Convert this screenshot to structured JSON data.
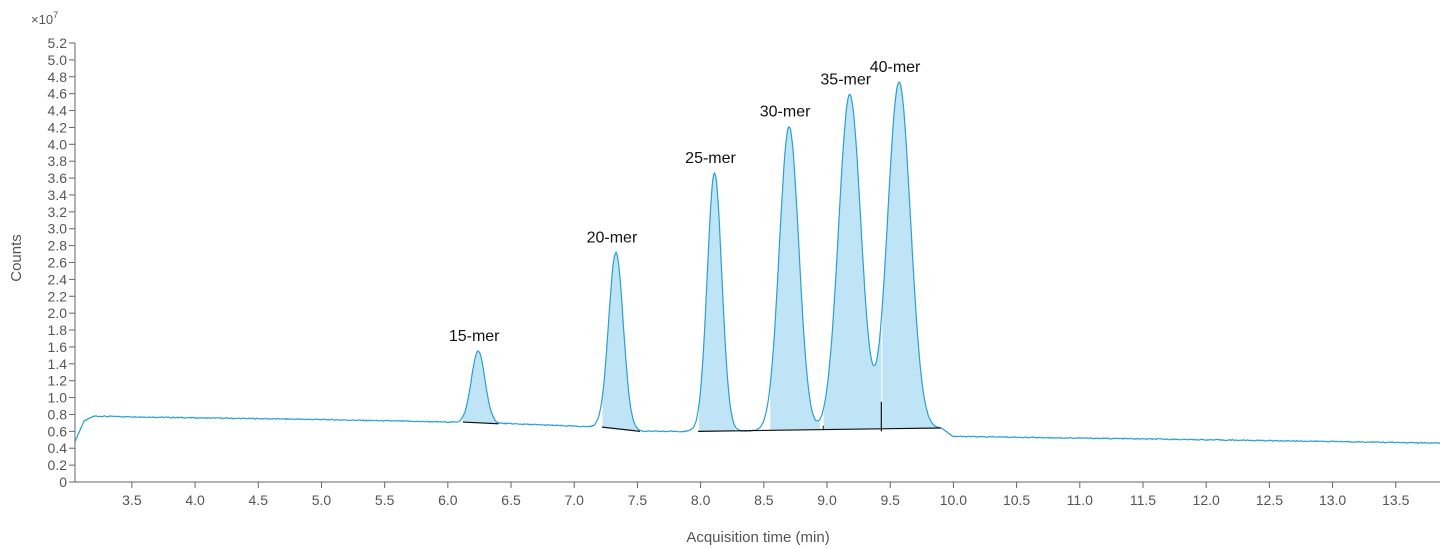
{
  "chart_data": {
    "type": "line",
    "xlabel": "Acquisition time (min)",
    "ylabel": "Counts",
    "y_multiplier": "×10",
    "y_multiplier_exponent": "7",
    "xlim": [
      3.05,
      13.85
    ],
    "ylim": [
      0,
      5.2
    ],
    "x_ticks": [
      "3.5",
      "4.0",
      "4.5",
      "5.0",
      "5.5",
      "6.0",
      "6.5",
      "7.0",
      "7.5",
      "8.0",
      "8.5",
      "9.0",
      "9.5",
      "10.0",
      "10.5",
      "11.0",
      "11.5",
      "12.0",
      "12.5",
      "13.0",
      "13.5"
    ],
    "y_ticks": [
      "0",
      "0.2",
      "0.4",
      "0.6",
      "0.8",
      "1.0",
      "1.2",
      "1.4",
      "1.6",
      "1.8",
      "2.0",
      "2.2",
      "2.4",
      "2.6",
      "2.8",
      "3.0",
      "3.2",
      "3.4",
      "3.6",
      "3.8",
      "4.0",
      "4.2",
      "4.4",
      "4.6",
      "4.8",
      "5.0",
      "5.2"
    ],
    "line_color": "#2a9fd0",
    "fill_color": "#bfe4f5",
    "peaks": [
      {
        "name": "15-mer",
        "apex_x": 6.24,
        "apex_y": 1.55,
        "start_x": 6.12,
        "end_x": 6.4
      },
      {
        "name": "20-mer",
        "apex_x": 7.33,
        "apex_y": 2.72,
        "start_x": 7.22,
        "end_x": 7.52
      },
      {
        "name": "25-mer",
        "apex_x": 8.11,
        "apex_y": 3.66,
        "start_x": 7.98,
        "end_x": 8.28
      },
      {
        "name": "30-mer",
        "apex_x": 8.7,
        "apex_y": 4.21,
        "start_x": 8.55,
        "end_x": 8.95
      },
      {
        "name": "35-mer",
        "apex_x": 9.18,
        "apex_y": 4.59,
        "start_x": 8.97,
        "end_x": 9.43
      },
      {
        "name": "40-mer",
        "apex_x": 9.57,
        "apex_y": 4.74,
        "start_x": 9.43,
        "end_x": 9.9
      }
    ],
    "peak_integration_boundary": [
      {
        "from_x": 9.43,
        "from_y": 0.6,
        "to_y": 0.95
      }
    ],
    "baseline_points": [
      {
        "x": 3.05,
        "y": 0.48
      },
      {
        "x": 3.12,
        "y": 0.72
      },
      {
        "x": 3.2,
        "y": 0.78
      },
      {
        "x": 4.0,
        "y": 0.76
      },
      {
        "x": 5.0,
        "y": 0.74
      },
      {
        "x": 6.0,
        "y": 0.71
      },
      {
        "x": 6.5,
        "y": 0.69
      },
      {
        "x": 7.2,
        "y": 0.65
      },
      {
        "x": 7.55,
        "y": 0.6
      },
      {
        "x": 8.0,
        "y": 0.6
      },
      {
        "x": 9.0,
        "y": 0.61
      },
      {
        "x": 9.9,
        "y": 0.64
      },
      {
        "x": 10.0,
        "y": 0.54
      },
      {
        "x": 11.0,
        "y": 0.52
      },
      {
        "x": 12.0,
        "y": 0.5
      },
      {
        "x": 13.0,
        "y": 0.48
      },
      {
        "x": 13.85,
        "y": 0.46
      }
    ],
    "integration_baselines": [
      {
        "x1": 6.12,
        "y1": 0.71,
        "x2": 6.4,
        "y2": 0.69
      },
      {
        "x1": 7.22,
        "y1": 0.65,
        "x2": 7.52,
        "y2": 0.6
      },
      {
        "x1": 7.98,
        "y1": 0.6,
        "x2": 9.9,
        "y2": 0.64
      }
    ]
  }
}
